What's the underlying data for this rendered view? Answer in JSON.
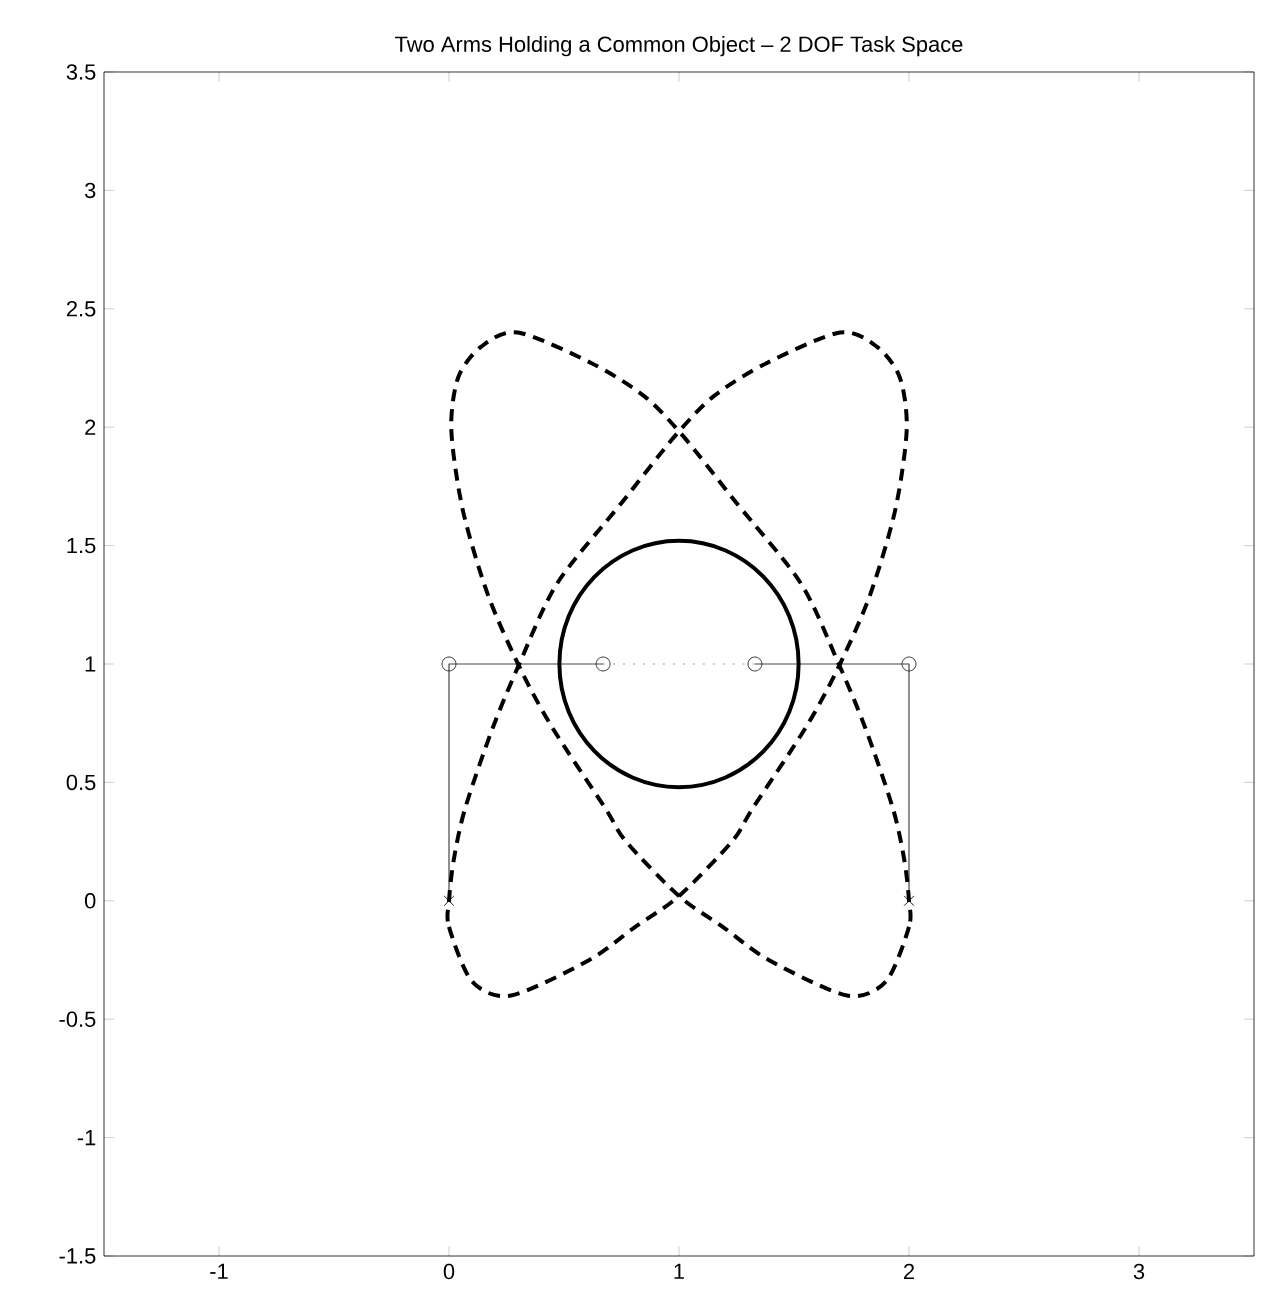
{
  "chart_data": {
    "type": "line",
    "title": "Two Arms Holding a Common Object – 2 DOF Task Space",
    "xlim": [
      -1.5,
      3.5
    ],
    "ylim": [
      -1.5,
      3.5
    ],
    "xticks": [
      -1,
      0,
      1,
      2,
      3
    ],
    "yticks": [
      -1.5,
      -1,
      -0.5,
      0,
      0.5,
      1,
      1.5,
      2,
      2.5,
      3,
      3.5
    ],
    "grid": false,
    "series": [
      {
        "color": "#444444",
        "line_style": "solid",
        "marker": "none",
        "x": [
          0,
          0,
          0.67
        ],
        "values": [
          0,
          1,
          1
        ]
      },
      {
        "color": "#444444",
        "line_style": "solid",
        "marker": "none",
        "x": [
          2,
          2,
          1.33
        ],
        "values": [
          0,
          1,
          1
        ]
      },
      {
        "color": "#999999",
        "line_style": "dotted",
        "marker": "none",
        "x": [
          0.67,
          1.33
        ],
        "values": [
          1,
          1
        ]
      },
      {
        "type": "scatter",
        "color": "#333333",
        "marker": "circle",
        "x": [
          0,
          0.67,
          1.33,
          2
        ],
        "values": [
          1,
          1,
          1,
          1
        ]
      },
      {
        "type": "scatter",
        "color": "#222222",
        "marker": "cross",
        "x": [
          0,
          2
        ],
        "values": [
          0,
          0
        ]
      }
    ]
  }
}
